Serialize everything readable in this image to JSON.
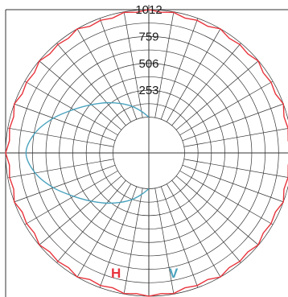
{
  "chart_data": {
    "type": "polar",
    "grid": true,
    "radial_ticks": [
      "253",
      "506",
      "759",
      "1012"
    ],
    "radial_max": 1012,
    "hole_fraction": 0.25,
    "angle_step_deg": 10,
    "colors": {
      "H": "#e8343c",
      "V": "#4aa3be",
      "grid": "#333333"
    },
    "series": [
      {
        "name": "H",
        "note": "red curve: nearly constant intensity in all directions, slight scallops between spokes",
        "angles_deg": [
          0,
          10,
          20,
          30,
          40,
          50,
          60,
          70,
          80,
          90,
          100,
          110,
          120,
          130,
          140,
          150,
          160,
          170,
          180,
          190,
          200,
          210,
          220,
          230,
          240,
          250,
          260,
          270,
          280,
          290,
          300,
          310,
          320,
          330,
          340,
          350
        ],
        "values": [
          1012,
          1007,
          992,
          1012,
          996,
          1009,
          993,
          1012,
          995,
          1012,
          995,
          1012,
          993,
          1009,
          996,
          1012,
          992,
          1007,
          1012,
          1007,
          992,
          1012,
          996,
          1009,
          993,
          1012,
          995,
          1012,
          995,
          1012,
          993,
          1009,
          996,
          1012,
          992,
          1007
        ]
      },
      {
        "name": "V",
        "note": "blue curve: bottom lobe from the centre circle edge",
        "angles_deg": [
          180,
          190,
          200,
          210,
          220,
          230,
          240,
          250,
          260,
          270,
          280,
          290,
          300,
          310,
          320,
          330,
          340,
          350,
          0
        ],
        "values": [
          0,
          60,
          130,
          200,
          280,
          370,
          480,
          620,
          750,
          820,
          750,
          620,
          480,
          370,
          280,
          200,
          130,
          60,
          0
        ]
      }
    ],
    "legend": {
      "H": "H",
      "V": "V"
    }
  }
}
